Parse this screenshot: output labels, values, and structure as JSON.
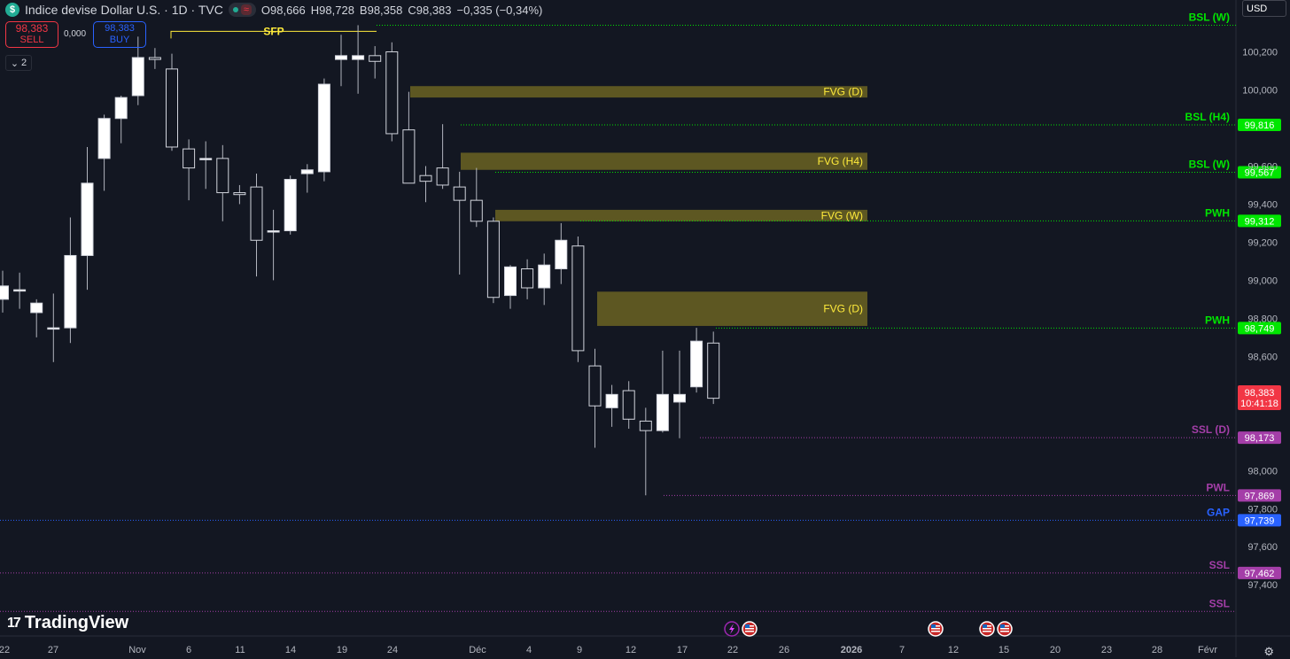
{
  "header": {
    "symbol_icon": "dollar-icon",
    "title": "Indice devise Dollar U.S. · 1D · TVC",
    "ohlc": {
      "o_label": "O",
      "o": "98,666",
      "h_label": "H",
      "h": "98,728",
      "b_label": "B",
      "b": "98,358",
      "c_label": "C",
      "c": "98,383",
      "change": "−0,335 (−0,34%)"
    }
  },
  "trade": {
    "sell_price": "98,383",
    "sell_label": "SELL",
    "buy_price": "98,383",
    "buy_label": "BUY",
    "spread": "0,000"
  },
  "legend_toggle": "2",
  "currency": "USD",
  "logo": "TradingView",
  "colors": {
    "background": "#131722",
    "candle_up": "#ffffff",
    "candle_down": "#131722",
    "fvg": "#6b6322",
    "bsl": "#00e600",
    "ssl": "#a43ea8",
    "gap": "#2962ff",
    "sfp": "#ffeb3b",
    "current_price": "#f23645"
  },
  "chart_data": {
    "type": "candlestick",
    "y_range": [
      97.28,
      100.37
    ],
    "y_ticks": [
      "100,200",
      "100,000",
      "99,600",
      "99,400",
      "99,200",
      "99,000",
      "98,800",
      "98,600",
      "98,000",
      "97,800",
      "97,600",
      "97,400"
    ],
    "x_ticks": [
      "22",
      "27",
      "Nov",
      "6",
      "11",
      "14",
      "19",
      "24",
      "Déc",
      "4",
      "9",
      "12",
      "17",
      "22",
      "26",
      "2026",
      "7",
      "12",
      "15",
      "20",
      "23",
      "28",
      "Févr"
    ],
    "candles": [
      {
        "o": 98.9,
        "h": 99.05,
        "l": 98.83,
        "c": 98.97
      },
      {
        "o": 98.95,
        "h": 99.04,
        "l": 98.85,
        "c": 98.95
      },
      {
        "o": 98.83,
        "h": 98.9,
        "l": 98.7,
        "c": 98.88
      },
      {
        "o": 98.75,
        "h": 98.93,
        "l": 98.57,
        "c": 98.75
      },
      {
        "o": 98.75,
        "h": 99.33,
        "l": 98.67,
        "c": 99.13
      },
      {
        "o": 99.13,
        "h": 99.7,
        "l": 98.95,
        "c": 99.51
      },
      {
        "o": 99.64,
        "h": 99.87,
        "l": 99.47,
        "c": 99.85
      },
      {
        "o": 99.85,
        "h": 99.97,
        "l": 99.72,
        "c": 99.96
      },
      {
        "o": 99.97,
        "h": 100.28,
        "l": 99.92,
        "c": 100.17
      },
      {
        "o": 100.17,
        "h": 100.22,
        "l": 100.11,
        "c": 100.16
      },
      {
        "o": 100.11,
        "h": 100.19,
        "l": 99.68,
        "c": 99.7
      },
      {
        "o": 99.69,
        "h": 99.74,
        "l": 99.42,
        "c": 99.59
      },
      {
        "o": 99.64,
        "h": 99.73,
        "l": 99.48,
        "c": 99.64
      },
      {
        "o": 99.64,
        "h": 99.71,
        "l": 99.31,
        "c": 99.46
      },
      {
        "o": 99.46,
        "h": 99.5,
        "l": 99.4,
        "c": 99.45
      },
      {
        "o": 99.49,
        "h": 99.56,
        "l": 99.02,
        "c": 99.21
      },
      {
        "o": 99.26,
        "h": 99.37,
        "l": 99.0,
        "c": 99.26
      },
      {
        "o": 99.26,
        "h": 99.55,
        "l": 99.24,
        "c": 99.53
      },
      {
        "o": 99.56,
        "h": 99.61,
        "l": 99.46,
        "c": 99.58
      },
      {
        "o": 99.57,
        "h": 100.06,
        "l": 99.52,
        "c": 100.03
      },
      {
        "o": 100.16,
        "h": 100.29,
        "l": 100.02,
        "c": 100.18
      },
      {
        "o": 100.16,
        "h": 100.34,
        "l": 99.98,
        "c": 100.18
      },
      {
        "o": 100.18,
        "h": 100.23,
        "l": 100.06,
        "c": 100.15
      },
      {
        "o": 100.2,
        "h": 100.25,
        "l": 99.73,
        "c": 99.77
      },
      {
        "o": 99.79,
        "h": 99.99,
        "l": 99.52,
        "c": 99.51
      },
      {
        "o": 99.55,
        "h": 99.6,
        "l": 99.41,
        "c": 99.52
      },
      {
        "o": 99.59,
        "h": 99.82,
        "l": 99.48,
        "c": 99.5
      },
      {
        "o": 99.49,
        "h": 99.57,
        "l": 99.03,
        "c": 99.42
      },
      {
        "o": 99.42,
        "h": 99.59,
        "l": 99.28,
        "c": 99.31
      },
      {
        "o": 99.31,
        "h": 99.33,
        "l": 98.88,
        "c": 98.91
      },
      {
        "o": 98.92,
        "h": 99.08,
        "l": 98.85,
        "c": 99.07
      },
      {
        "o": 99.06,
        "h": 99.11,
        "l": 98.9,
        "c": 98.96
      },
      {
        "o": 98.96,
        "h": 99.14,
        "l": 98.87,
        "c": 99.08
      },
      {
        "o": 99.06,
        "h": 99.3,
        "l": 98.98,
        "c": 99.21
      },
      {
        "o": 99.18,
        "h": 99.23,
        "l": 98.57,
        "c": 98.63
      },
      {
        "o": 98.55,
        "h": 98.64,
        "l": 98.12,
        "c": 98.34
      },
      {
        "o": 98.33,
        "h": 98.45,
        "l": 98.23,
        "c": 98.4
      },
      {
        "o": 98.42,
        "h": 98.47,
        "l": 98.22,
        "c": 98.27
      },
      {
        "o": 98.26,
        "h": 98.33,
        "l": 97.87,
        "c": 98.21
      },
      {
        "o": 98.21,
        "h": 98.63,
        "l": 98.2,
        "c": 98.4
      },
      {
        "o": 98.36,
        "h": 98.63,
        "l": 98.17,
        "c": 98.4
      },
      {
        "o": 98.44,
        "h": 98.75,
        "l": 98.41,
        "c": 98.68
      },
      {
        "o": 98.67,
        "h": 98.73,
        "l": 98.35,
        "c": 98.38
      }
    ],
    "levels": [
      {
        "label": "BSL (W)",
        "price": "",
        "value": 100.34,
        "color": "#00e600",
        "style": "dotted",
        "tag": false
      },
      {
        "label": "BSL (H4)",
        "price": "99,816",
        "value": 99.816,
        "color": "#00e600",
        "style": "dotted",
        "tag": true
      },
      {
        "label": "BSL (W)",
        "price": "99,567",
        "value": 99.567,
        "color": "#00e600",
        "style": "dotted",
        "tag": true
      },
      {
        "label": "PWH",
        "price": "99,312",
        "value": 99.312,
        "color": "#00e600",
        "style": "dotted",
        "tag": true
      },
      {
        "label": "PWH",
        "price": "98,749",
        "value": 98.749,
        "color": "#00e600",
        "style": "dotted",
        "tag": true
      },
      {
        "label": "SSL (D)",
        "price": "98,173",
        "value": 98.173,
        "color": "#a43ea8",
        "style": "dotted",
        "tag": true
      },
      {
        "label": "PWL",
        "price": "97,869",
        "value": 97.869,
        "color": "#a43ea8",
        "style": "dotted",
        "tag": true
      },
      {
        "label": "GAP",
        "price": "97,739",
        "value": 97.739,
        "color": "#2962ff",
        "style": "dotted",
        "tag": true
      },
      {
        "label": "SSL",
        "price": "97,462",
        "value": 97.462,
        "color": "#a43ea8",
        "style": "dotted",
        "tag": true
      },
      {
        "label": "SSL",
        "price": "",
        "value": 97.26,
        "color": "#a43ea8",
        "style": "dotted",
        "tag": false
      }
    ],
    "fvg_zones": [
      {
        "label": "FVG (D)",
        "top": 100.02,
        "bottom": 99.96
      },
      {
        "label": "FVG (H4)",
        "top": 99.67,
        "bottom": 99.58
      },
      {
        "label": "FVG (W)",
        "top": 99.37,
        "bottom": 99.31
      },
      {
        "label": "FVG (D)",
        "top": 98.94,
        "bottom": 98.76
      }
    ],
    "annotations": [
      {
        "label": "SFP",
        "value": 100.28
      }
    ],
    "current_price": {
      "price": "98,383",
      "countdown": "10:41:18",
      "value": 98.383
    },
    "events": [
      "flash-icon",
      "us-flag-icon",
      "us-flag-icon",
      "us-flag-icon",
      "us-flag-icon"
    ]
  }
}
